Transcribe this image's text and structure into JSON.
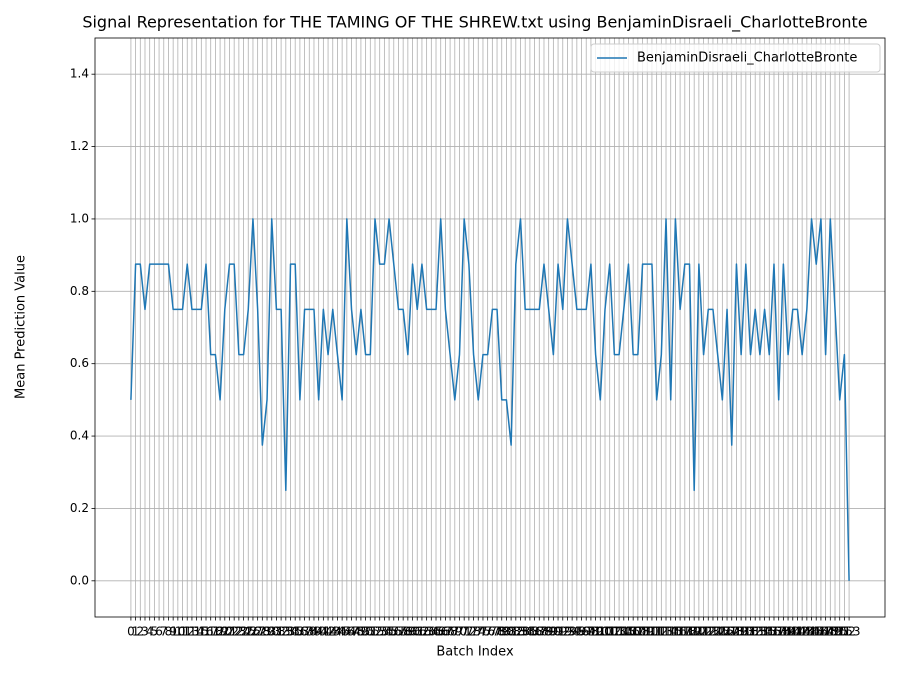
{
  "chart_data": {
    "type": "line",
    "title": "Signal Representation for THE TAMING OF THE SHREW.txt using BenjaminDisraeli_CharlotteBronte",
    "xlabel": "Batch Index",
    "ylabel": "Mean Prediction Value",
    "x": [
      0,
      1,
      2,
      3,
      4,
      5,
      6,
      7,
      8,
      9,
      10,
      11,
      12,
      13,
      14,
      15,
      16,
      17,
      18,
      19,
      20,
      21,
      22,
      23,
      24,
      25,
      26,
      27,
      28,
      29,
      30,
      31,
      32,
      33,
      34,
      35,
      36,
      37,
      38,
      39,
      40,
      41,
      42,
      43,
      44,
      45,
      46,
      47,
      48,
      49,
      50,
      51,
      52,
      53,
      54,
      55,
      56,
      57,
      58,
      59,
      60,
      61,
      62,
      63,
      64,
      65,
      66,
      67,
      68,
      69,
      70,
      71,
      72,
      73,
      74,
      75,
      76,
      77,
      78,
      79,
      80,
      81,
      82,
      83,
      84,
      85,
      86,
      87,
      88,
      89,
      90,
      91,
      92,
      93,
      94,
      95,
      96,
      97,
      98,
      99,
      100,
      101,
      102,
      103,
      104,
      105,
      106,
      107,
      108,
      109,
      110,
      111,
      112,
      113,
      114,
      115,
      116,
      117,
      118,
      119,
      120,
      121,
      122,
      123,
      124,
      125,
      126,
      127,
      128,
      129,
      130,
      131,
      132,
      133,
      134,
      135,
      136,
      137,
      138,
      139,
      140,
      141,
      142,
      143,
      144,
      145,
      146,
      147,
      148,
      149,
      150,
      151,
      152,
      153
    ],
    "series": [
      {
        "name": "BenjaminDisraeli_CharlotteBronte",
        "color": "#1f77b4",
        "values": [
          0.5,
          0.875,
          0.875,
          0.75,
          0.875,
          0.875,
          0.875,
          0.875,
          0.875,
          0.75,
          0.75,
          0.75,
          0.875,
          0.75,
          0.75,
          0.75,
          0.875,
          0.625,
          0.625,
          0.5,
          0.75,
          0.875,
          0.875,
          0.625,
          0.625,
          0.75,
          1,
          0.75,
          0.375,
          0.5,
          1,
          0.75,
          0.75,
          0.25,
          0.875,
          0.875,
          0.5,
          0.75,
          0.75,
          0.75,
          0.5,
          0.75,
          0.625,
          0.75,
          0.625,
          0.5,
          1,
          0.75,
          0.625,
          0.75,
          0.625,
          0.625,
          1,
          0.875,
          0.875,
          1,
          0.875,
          0.75,
          0.75,
          0.625,
          0.875,
          0.75,
          0.875,
          0.75,
          0.75,
          0.75,
          1,
          0.75,
          0.625,
          0.5,
          0.625,
          1,
          0.875,
          0.625,
          0.5,
          0.625,
          0.625,
          0.75,
          0.75,
          0.5,
          0.5,
          0.375,
          0.875,
          1,
          0.75,
          0.75,
          0.75,
          0.75,
          0.875,
          0.75,
          0.625,
          0.875,
          0.75,
          1,
          0.875,
          0.75,
          0.75,
          0.75,
          0.875,
          0.625,
          0.5,
          0.75,
          0.875,
          0.625,
          0.625,
          0.75,
          0.875,
          0.625,
          0.625,
          0.875,
          0.875,
          0.875,
          0.5,
          0.625,
          1,
          0.5,
          1,
          0.75,
          0.875,
          0.875,
          0.25,
          0.875,
          0.625,
          0.75,
          0.75,
          0.625,
          0.5,
          0.75,
          0.375,
          0.875,
          0.625,
          0.875,
          0.625,
          0.75,
          0.625,
          0.75,
          0.625,
          0.875,
          0.5,
          0.875,
          0.625,
          0.75,
          0.75,
          0.625,
          0.75,
          1,
          0.875,
          1,
          0.625,
          1,
          0.75,
          0.5,
          0.625,
          0
        ]
      }
    ],
    "xlim": [
      -7.65,
      160.65
    ],
    "xticks": [
      0,
      1,
      2,
      3,
      4,
      5,
      6,
      7,
      8,
      9,
      10,
      11,
      12,
      13,
      14,
      15,
      16,
      17,
      18,
      19,
      20,
      21,
      22,
      23,
      24,
      25,
      26,
      27,
      28,
      29,
      30,
      31,
      32,
      33,
      34,
      35,
      36,
      37,
      38,
      39,
      40,
      41,
      42,
      43,
      44,
      45,
      46,
      47,
      48,
      49,
      50,
      51,
      52,
      53,
      54,
      55,
      56,
      57,
      58,
      59,
      60,
      61,
      62,
      63,
      64,
      65,
      66,
      67,
      68,
      69,
      70,
      71,
      72,
      73,
      74,
      75,
      76,
      77,
      78,
      79,
      80,
      81,
      82,
      83,
      84,
      85,
      86,
      87,
      88,
      89,
      90,
      91,
      92,
      93,
      94,
      95,
      96,
      97,
      98,
      99,
      100,
      101,
      102,
      103,
      104,
      105,
      106,
      107,
      108,
      109,
      110,
      111,
      112,
      113,
      114,
      115,
      116,
      117,
      118,
      119,
      120,
      121,
      122,
      123,
      124,
      125,
      126,
      127,
      128,
      129,
      130,
      131,
      132,
      133,
      134,
      135,
      136,
      137,
      138,
      139,
      140,
      141,
      142,
      143,
      144,
      145,
      146,
      147,
      148,
      149,
      150,
      151,
      152,
      153
    ],
    "ylim": [
      -0.1,
      1.5
    ],
    "yticks": [
      {
        "value": 0,
        "label": "0.0"
      },
      0.2,
      0.4,
      0.6,
      0.8,
      {
        "value": 1,
        "label": "1.0"
      },
      1.2,
      1.4
    ],
    "grid": true,
    "legend": "upper right"
  }
}
